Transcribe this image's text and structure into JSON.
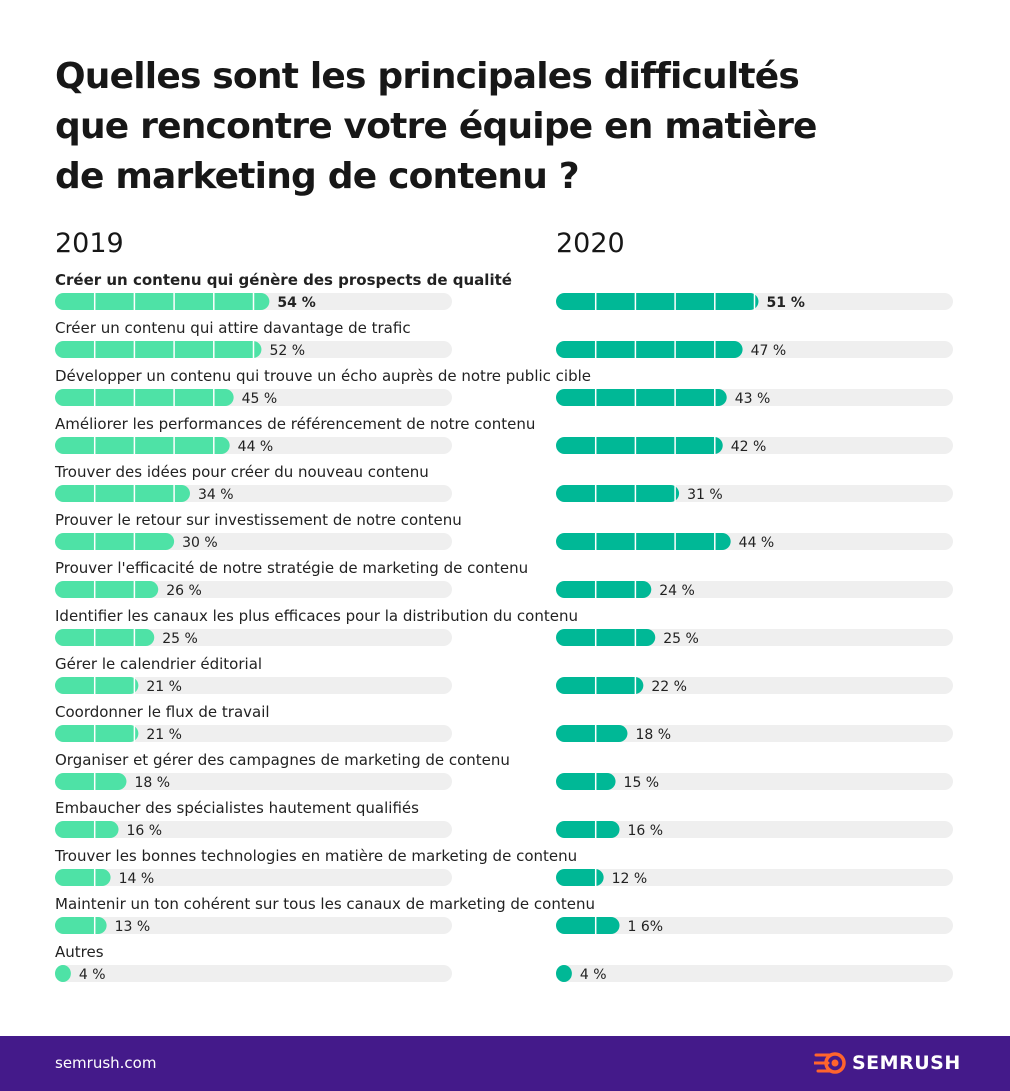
{
  "title": "Quelles sont les principales difficultés que rencontre votre équipe en matière de marketing de contenu ?",
  "colors": {
    "bar_2019": "#4ee2a6",
    "bar_2020": "#00b896",
    "track": "#efefef",
    "divider": "#ffffff",
    "footer_bg": "#441a8a",
    "logo_accent": "#ff642d"
  },
  "chart_data": {
    "type": "bar",
    "orientation": "horizontal",
    "xlim": [
      0,
      100
    ],
    "gridlines_every": 10,
    "years": [
      "2019",
      "2020"
    ],
    "categories": [
      "Créer un contenu qui génère des prospects de qualité",
      "Créer un contenu qui attire davantage de trafic",
      "Développer un contenu qui trouve un écho auprès de notre public cible",
      "Améliorer les performances de référencement de notre contenu",
      "Trouver des idées pour créer du nouveau contenu",
      "Prouver le retour sur investissement de notre contenu",
      "Prouver l'efficacité de notre stratégie de marketing de contenu",
      "Identifier les canaux les plus efficaces pour la distribution du contenu",
      "Gérer le calendrier éditorial",
      "Coordonner le flux de travail",
      "Organiser et gérer des campagnes de marketing de contenu",
      "Embaucher des spécialistes hautement qualifiés",
      "Trouver les bonnes technologies en matière de marketing de contenu",
      "Maintenir un ton cohérent sur tous les canaux de marketing de contenu",
      "Autres"
    ],
    "series": [
      {
        "name": "2019",
        "values": [
          54,
          52,
          45,
          44,
          34,
          30,
          26,
          25,
          21,
          21,
          18,
          16,
          14,
          13,
          4
        ],
        "labels": [
          "54 %",
          "52 %",
          "45 %",
          "44 %",
          "34 %",
          "30 %",
          "26 %",
          "25 %",
          "21 %",
          "21 %",
          "18 %",
          "16 %",
          "14 %",
          "13 %",
          "4 %"
        ]
      },
      {
        "name": "2020",
        "values": [
          51,
          47,
          43,
          42,
          31,
          44,
          24,
          25,
          22,
          18,
          15,
          16,
          12,
          16,
          4
        ],
        "labels": [
          "51 %",
          "47 %",
          "43 %",
          "42 %",
          "31 %",
          "44 %",
          "24 %",
          "25 %",
          "22 %",
          "18 %",
          "15 %",
          "16 %",
          "12 %",
          "1 6%",
          "4 %"
        ]
      }
    ],
    "highlighted_index": 0
  },
  "footer": {
    "url": "semrush.com",
    "logo_text": "SEMRUSH",
    "logo_icon": "semrush-fireball-icon"
  }
}
